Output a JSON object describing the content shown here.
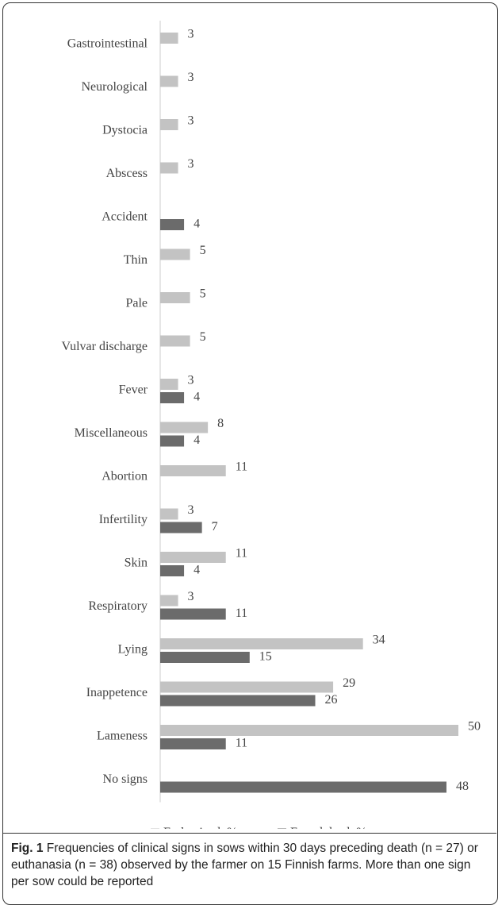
{
  "chart_data": {
    "type": "bar",
    "orientation": "horizontal",
    "categories": [
      "Gastrointestinal",
      "Neurological",
      "Dystocia",
      "Abscess",
      "Accident",
      "Thin",
      "Pale",
      "Vulvar discharge",
      "Fever",
      "Miscellaneous",
      "Abortion",
      "Infertility",
      "Skin",
      "Respiratory",
      "Lying",
      "Inappetence",
      "Lameness",
      "No signs"
    ],
    "series": [
      {
        "name": "Euthanized, %",
        "color": "#c3c3c3",
        "values": [
          3,
          3,
          3,
          3,
          null,
          5,
          5,
          5,
          3,
          8,
          11,
          3,
          11,
          3,
          34,
          29,
          50,
          null
        ]
      },
      {
        "name": "Found dead, %",
        "color": "#6b6b6b",
        "values": [
          null,
          null,
          null,
          null,
          4,
          null,
          null,
          null,
          4,
          4,
          null,
          7,
          4,
          11,
          15,
          26,
          11,
          48
        ]
      }
    ],
    "xlim": [
      0,
      50
    ],
    "legend": "bottom",
    "caption": {
      "label": "Fig. 1",
      "text": "Frequencies of clinical signs in sows within 30 days preceding death (n = 27) or euthanasia (n = 38) observed by the farmer on 15 Finnish farms. More than one sign per sow could be reported"
    }
  }
}
